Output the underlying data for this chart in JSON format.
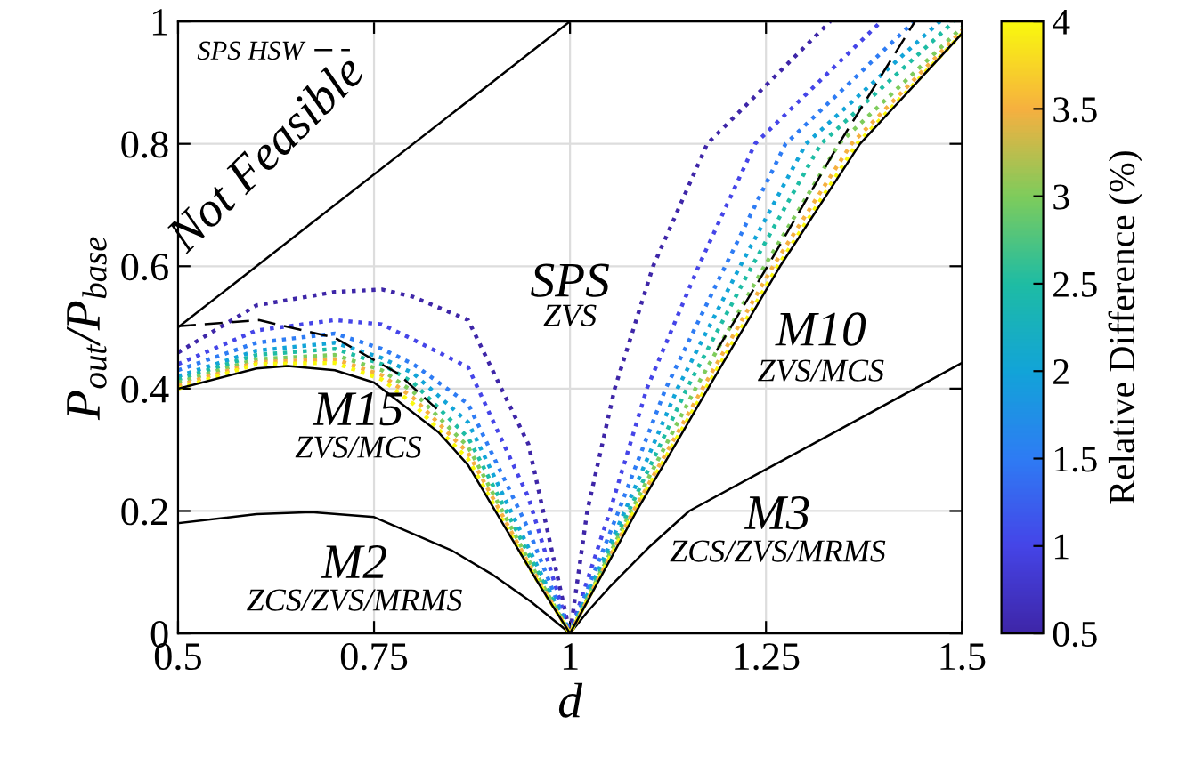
{
  "chart_data": {
    "type": "line",
    "xlabel": "d",
    "ylabel": "P$_{out}$/P$_{base}$",
    "clabel": "Relative Difference (%)",
    "xlim": [
      0.5,
      1.5
    ],
    "xticks": [
      0.5,
      0.75,
      1,
      1.25,
      1.5
    ],
    "ylim": [
      0,
      1
    ],
    "yticks": [
      0,
      0.2,
      0.4,
      0.6,
      0.8,
      1
    ],
    "clim": [
      0.5,
      4
    ],
    "cticks": [
      0.5,
      1,
      1.5,
      2,
      2.5,
      3,
      3.5,
      4
    ],
    "grid": true,
    "legend": "top left",
    "marker": "none",
    "annotations": [
      "Not Feasible",
      "SPS",
      "ZVS",
      "M10",
      "ZVS/MCS",
      "M15",
      "ZVS/MCS",
      "M2",
      "ZCS/ZVS/MRMS",
      "M3",
      "ZCS/ZVS/MRMS"
    ],
    "series": [
      {
        "color": "#000000",
        "line_style": "solid",
        "x": [
          0.5,
          1
        ],
        "values": [
          0.5,
          1
        ]
      },
      {
        "color": "#000000",
        "line_style": "solid",
        "x": [
          0.5,
          0.6,
          0.67,
          0.75,
          0.85,
          0.9,
          0.95,
          1,
          1.022,
          1.05,
          1.1,
          1.152,
          1.25,
          1.44,
          1.5
        ],
        "values": [
          0.18,
          0.195,
          0.198,
          0.19,
          0.135,
          0.097,
          0.052,
          0,
          0.035,
          0.075,
          0.14,
          0.2,
          0.268,
          0.4,
          0.442
        ]
      },
      {
        "color": "#3e26a8",
        "line_style": "dotted",
        "x": [
          0.5,
          0.6,
          0.7,
          0.76,
          0.8,
          0.87,
          0.947,
          1,
          1.022,
          1.057,
          1.106,
          1.175,
          1.332
        ],
        "values": [
          0.459,
          0.536,
          0.558,
          0.562,
          0.55,
          0.512,
          0.309,
          0,
          0.2,
          0.4,
          0.6,
          0.8,
          1
        ]
      },
      {
        "color": "#4545e8",
        "line_style": "dotted",
        "x": [
          0.5,
          0.6,
          0.7,
          0.76,
          0.8,
          0.87,
          0.947,
          1,
          1.051,
          1.098,
          1.164,
          1.236,
          1.397
        ],
        "values": [
          0.44,
          0.495,
          0.512,
          0.505,
          0.48,
          0.435,
          0.222,
          0,
          0.2,
          0.4,
          0.6,
          0.8,
          1
        ]
      },
      {
        "color": "#2e7cf4",
        "line_style": "dotted",
        "x": [
          0.5,
          0.6,
          0.7,
          0.76,
          0.8,
          0.87,
          0.947,
          1,
          1.062,
          1.122,
          1.198,
          1.275,
          1.439
        ],
        "values": [
          0.43,
          0.475,
          0.49,
          0.465,
          0.44,
          0.375,
          0.17,
          0,
          0.2,
          0.4,
          0.6,
          0.8,
          1
        ]
      },
      {
        "color": "#12a4d8",
        "line_style": "dotted",
        "x": [
          0.5,
          0.6,
          0.7,
          0.76,
          0.8,
          0.87,
          0.947,
          1,
          1.07,
          1.137,
          1.217,
          1.301,
          1.472
        ],
        "values": [
          0.42,
          0.462,
          0.475,
          0.45,
          0.425,
          0.345,
          0.14,
          0,
          0.2,
          0.4,
          0.6,
          0.8,
          1
        ]
      },
      {
        "color": "#1ebca4",
        "line_style": "dotted",
        "x": [
          0.5,
          0.6,
          0.7,
          0.76,
          0.8,
          0.87,
          0.947,
          1,
          1.075,
          1.149,
          1.232,
          1.32,
          1.49
        ],
        "values": [
          0.415,
          0.455,
          0.465,
          0.44,
          0.41,
          0.32,
          0.13,
          0,
          0.2,
          0.4,
          0.6,
          0.8,
          1
        ]
      },
      {
        "color": "#7ecc5c",
        "line_style": "dotted",
        "x": [
          0.5,
          0.6,
          0.7,
          0.76,
          0.8,
          0.87,
          0.947,
          1,
          1.078,
          1.16,
          1.248,
          1.343,
          1.5
        ],
        "values": [
          0.41,
          0.448,
          0.455,
          0.43,
          0.395,
          0.305,
          0.12,
          0,
          0.2,
          0.4,
          0.6,
          0.8,
          0.99
        ]
      },
      {
        "color": "#f6b040",
        "line_style": "dotted",
        "x": [
          0.5,
          0.6,
          0.7,
          0.76,
          0.8,
          0.87,
          0.947,
          1,
          1.081,
          1.169,
          1.259,
          1.359,
          1.5
        ],
        "values": [
          0.405,
          0.443,
          0.448,
          0.422,
          0.385,
          0.295,
          0.115,
          0,
          0.2,
          0.4,
          0.6,
          0.8,
          0.985
        ]
      },
      {
        "color": "#f9f90e",
        "line_style": "dotted",
        "x": [
          0.5,
          0.6,
          0.7,
          0.76,
          0.8,
          0.87,
          0.947,
          1,
          1.082,
          1.173,
          1.265,
          1.366,
          1.5
        ],
        "values": [
          0.4,
          0.44,
          0.442,
          0.415,
          0.375,
          0.285,
          0.11,
          0,
          0.2,
          0.4,
          0.6,
          0.8,
          0.98
        ]
      },
      {
        "color": "#000000",
        "line_style": "solid",
        "x": [
          0.5,
          0.6,
          0.64,
          0.7,
          0.75,
          0.832,
          0.87,
          0.908,
          0.962,
          1,
          1.085,
          1.176,
          1.268,
          1.37,
          1.5
        ],
        "values": [
          0.4,
          0.433,
          0.437,
          0.43,
          0.41,
          0.329,
          0.275,
          0.193,
          0.077,
          0,
          0.2,
          0.4,
          0.6,
          0.8,
          0.98
        ]
      },
      {
        "name": "SPS HSW",
        "color": "#000000",
        "line_style": "dashed",
        "x": [
          0.5,
          0.603,
          0.7,
          0.78,
          0.83
        ],
        "values": [
          0.502,
          0.512,
          0.483,
          0.425,
          0.367
        ]
      },
      {
        "color": "#000000",
        "line_style": "dashed",
        "x": [
          1.187,
          1.252,
          1.343,
          1.44
        ],
        "values": [
          0.462,
          0.6,
          0.8,
          1
        ]
      }
    ]
  }
}
